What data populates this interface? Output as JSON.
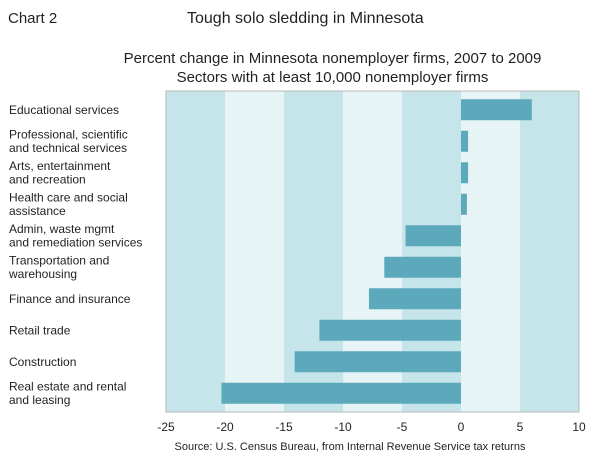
{
  "header": {
    "chart_label": "Chart 2",
    "title": "Tough solo sledding in Minnesota",
    "subtitle_line1": "Percent change in Minnesota nonemployer firms, 2007 to 2009",
    "subtitle_line2": "Sectors with at least 10,000 nonemployer firms"
  },
  "source": "Source: U.S. Census Bureau, from Internal Revenue Service tax returns",
  "colors": {
    "bar": "#5ba9bb",
    "band_dark": "#c6e5ea",
    "band_light": "#e7f4f6",
    "frame": "#b8b8b8"
  },
  "chart_data": {
    "type": "bar",
    "orientation": "horizontal",
    "categories": [
      [
        "Educational services"
      ],
      [
        "Professional, scientific",
        "and technical services"
      ],
      [
        "Arts, entertainment",
        "and recreation"
      ],
      [
        "Health care and social",
        "assistance"
      ],
      [
        "Admin, waste mgmt",
        "and remediation services"
      ],
      [
        "Transportation and",
        "warehousing"
      ],
      [
        "Finance and insurance"
      ],
      [
        "Retail trade"
      ],
      [
        "Construction"
      ],
      [
        "Real estate and rental",
        "and leasing"
      ]
    ],
    "values": [
      6.0,
      0.6,
      0.6,
      0.5,
      -4.7,
      -6.5,
      -7.8,
      -12.0,
      -14.1,
      -20.3
    ],
    "xlim": [
      -25,
      10
    ],
    "xticks": [
      "-25",
      "-20",
      "-15",
      "-10",
      "-5",
      "0",
      "5",
      "10"
    ],
    "grid": "alternating vertical bands",
    "legend": "none"
  }
}
